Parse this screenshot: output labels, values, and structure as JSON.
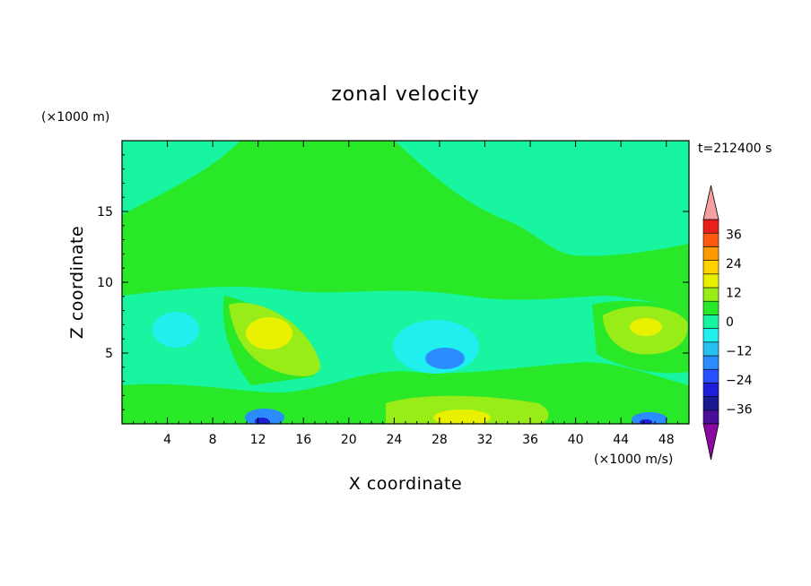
{
  "chart_data": {
    "type": "heatmap",
    "title": "zonal velocity",
    "xlabel": "X coordinate",
    "ylabel": "Z coordinate",
    "x_unit": "(×1000 m/s)",
    "y_unit": "(×1000 m)",
    "time_label": "t=212400 s",
    "xlim": [
      0,
      50
    ],
    "ylim": [
      0,
      20
    ],
    "x_ticks": [
      4,
      8,
      12,
      16,
      20,
      24,
      28,
      32,
      36,
      40,
      44,
      48
    ],
    "y_ticks": [
      5,
      10,
      15
    ],
    "colorbar": {
      "levels": [
        -42,
        -36,
        -30,
        -24,
        -18,
        -12,
        -6,
        0,
        6,
        12,
        18,
        24,
        30,
        36,
        42
      ],
      "labels": [
        36,
        24,
        12,
        0,
        -12,
        -24,
        -36
      ],
      "colors": [
        "#4a0f9a",
        "#1a1a90",
        "#1e1ed8",
        "#2850ff",
        "#2a8cff",
        "#27c0f0",
        "#1ff0ee",
        "#18f5a0",
        "#28e828",
        "#98ec18",
        "#e8f000",
        "#ffd200",
        "#ff9a00",
        "#ff5a10",
        "#e8201c"
      ],
      "over_color": "#f4a0a0",
      "under_color": "#8a0aa0"
    },
    "regions": [
      {
        "level": 6,
        "x": 13,
        "z": 6,
        "rx": 4,
        "rz": 2.5
      },
      {
        "level": 6,
        "x": 46,
        "z": 7,
        "rx": 3,
        "rz": 1.8
      },
      {
        "level": 6,
        "x": 28,
        "z": 0.4,
        "rx": 5,
        "rz": 1.2
      },
      {
        "level": -12,
        "x": 28.5,
        "z": 4.7,
        "rx": 2,
        "rz": 0.9
      },
      {
        "level": -12,
        "x": 5,
        "z": 6.5,
        "rx": 2,
        "rz": 1.5
      },
      {
        "level": -24,
        "x": 12.5,
        "z": 0.5,
        "rx": 2,
        "rz": 0.6
      },
      {
        "level": -24,
        "x": 46,
        "z": 0.4,
        "rx": 2,
        "rz": 0.5
      }
    ]
  }
}
